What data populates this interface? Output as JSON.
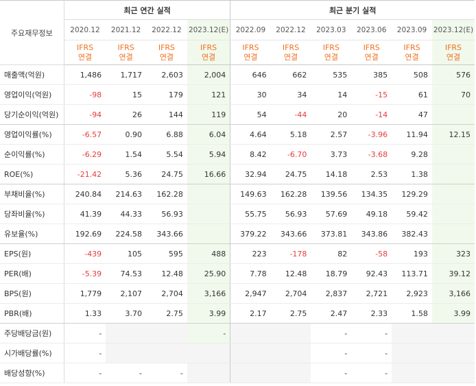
{
  "header": {
    "corner_label": "주요재무정보",
    "annual_title": "최근 연간 실적",
    "quarter_title": "최근 분기 실적",
    "annual_periods": [
      "2020.12",
      "2021.12",
      "2022.12",
      "2023.12(E)"
    ],
    "quarter_periods": [
      "2022.09",
      "2022.12",
      "2023.03",
      "2023.06",
      "2023.09",
      "2023.12(E)"
    ],
    "ifrs_line1": "IFRS",
    "ifrs_line2": "연결"
  },
  "rows": [
    {
      "label": "매출액(억원)",
      "values": [
        "1,486",
        "1,717",
        "2,603",
        "2,004",
        "646",
        "662",
        "535",
        "385",
        "508",
        "576"
      ]
    },
    {
      "label": "영업이익(억원)",
      "values": [
        "-98",
        "15",
        "179",
        "121",
        "30",
        "34",
        "14",
        "-15",
        "61",
        "70"
      ]
    },
    {
      "label": "당기순이익(억원)",
      "values": [
        "-94",
        "26",
        "144",
        "119",
        "54",
        "-44",
        "20",
        "-14",
        "47",
        ""
      ]
    },
    {
      "label": "영업이익률(%)",
      "values": [
        "-6.57",
        "0.90",
        "6.88",
        "6.04",
        "4.64",
        "5.18",
        "2.57",
        "-3.96",
        "11.94",
        "12.15"
      ]
    },
    {
      "label": "순이익률(%)",
      "values": [
        "-6.29",
        "1.54",
        "5.54",
        "5.94",
        "8.42",
        "-6.70",
        "3.73",
        "-3.68",
        "9.28",
        ""
      ]
    },
    {
      "label": "ROE(%)",
      "values": [
        "-21.42",
        "5.36",
        "24.75",
        "16.66",
        "32.94",
        "24.75",
        "14.18",
        "2.53",
        "1.38",
        ""
      ]
    },
    {
      "label": "부채비율(%)",
      "values": [
        "240.84",
        "214.63",
        "162.28",
        "",
        "149.63",
        "162.28",
        "139.56",
        "134.35",
        "129.29",
        ""
      ]
    },
    {
      "label": "당좌비율(%)",
      "values": [
        "41.39",
        "44.33",
        "56.93",
        "",
        "55.75",
        "56.93",
        "57.69",
        "49.18",
        "59.42",
        ""
      ]
    },
    {
      "label": "유보율(%)",
      "values": [
        "192.69",
        "224.58",
        "343.66",
        "",
        "379.22",
        "343.66",
        "373.81",
        "343.86",
        "382.43",
        ""
      ]
    },
    {
      "label": "EPS(원)",
      "values": [
        "-439",
        "105",
        "595",
        "488",
        "223",
        "-178",
        "82",
        "-58",
        "193",
        "323"
      ]
    },
    {
      "label": "PER(배)",
      "values": [
        "-5.39",
        "74.53",
        "12.48",
        "25.90",
        "7.78",
        "12.48",
        "18.79",
        "92.43",
        "113.71",
        "39.12"
      ]
    },
    {
      "label": "BPS(원)",
      "values": [
        "1,779",
        "2,107",
        "2,704",
        "3,166",
        "2,947",
        "2,704",
        "2,837",
        "2,721",
        "2,923",
        "3,166"
      ]
    },
    {
      "label": "PBR(배)",
      "values": [
        "1.33",
        "3.70",
        "2.75",
        "3.99",
        "2.17",
        "2.75",
        "2.47",
        "2.33",
        "1.58",
        "3.99"
      ]
    },
    {
      "label": "주당배당금(원)",
      "values": [
        "-",
        "",
        "",
        "-",
        "",
        "",
        "-",
        "-",
        "",
        ""
      ]
    },
    {
      "label": "시가배당률(%)",
      "values": [
        "-",
        "",
        "",
        "",
        "",
        "",
        "-",
        "-",
        "",
        ""
      ]
    },
    {
      "label": "배당성향(%)",
      "values": [
        "-",
        "-",
        "-",
        "",
        "",
        "",
        "-",
        "-",
        "",
        ""
      ]
    }
  ]
}
